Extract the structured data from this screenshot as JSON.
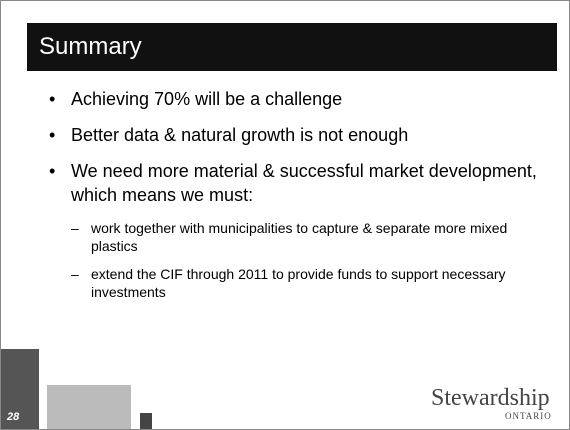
{
  "title": "Summary",
  "bullets": [
    {
      "text": "Achieving 70% will be a challenge"
    },
    {
      "text": "Better data & natural growth is not enough"
    },
    {
      "text": "We need more material & successful market development, which means we must:",
      "sub": [
        "work together with municipalities to capture & separate more mixed plastics",
        "extend the CIF through 2011 to provide funds to support necessary investments"
      ]
    }
  ],
  "page_number": "28",
  "logo": {
    "name": "Stewardship",
    "sub": "ONTARIO"
  }
}
